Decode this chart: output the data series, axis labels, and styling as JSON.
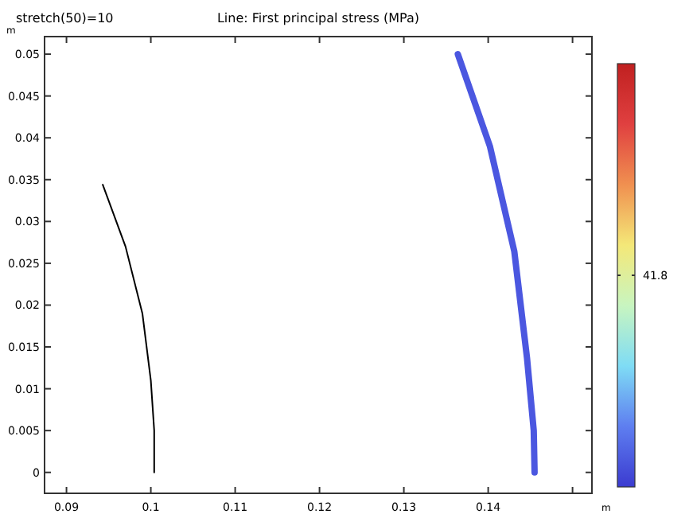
{
  "chart_data": {
    "type": "line",
    "title": "Line: First principal stress (MPa)",
    "xlabel": "m",
    "ylabel": "m",
    "annotations": [
      "stretch(50)=10",
      "41.8"
    ],
    "xlim": [
      0.0874,
      0.1523
    ],
    "ylim": [
      -0.0025,
      0.0521
    ],
    "xticks": [
      0.09,
      0.1,
      0.11,
      0.12,
      0.13,
      0.14,
      {
        "value": 0.15,
        "label": null
      }
    ],
    "yticks": [
      0,
      0.005,
      0.01,
      0.015,
      0.02,
      0.025,
      0.03,
      0.035,
      0.04,
      0.045,
      0.05
    ],
    "grid": false,
    "series": [
      {
        "color": "#000000",
        "x": [
          0.0943,
          0.097,
          0.099,
          0.1,
          0.1004,
          0.1004
        ],
        "values": [
          0.0344,
          0.027,
          0.019,
          0.011,
          0.005,
          0
        ]
      },
      {
        "color": "#4b57e0",
        "x": [
          0.1364,
          0.1402,
          0.1431,
          0.1446,
          0.1454,
          0.1455
        ],
        "values": [
          0.05,
          0.039,
          0.0264,
          0.0137,
          0.005,
          0
        ]
      }
    ]
  }
}
